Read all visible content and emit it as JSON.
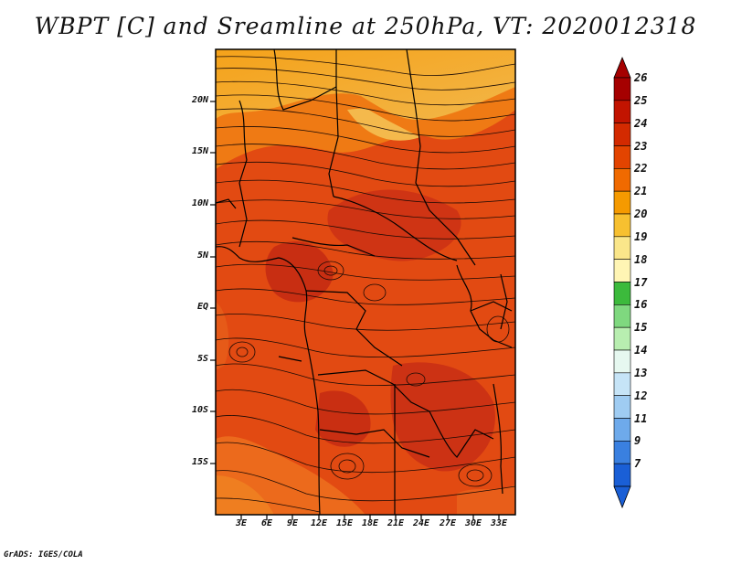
{
  "title": "WBPT [C] and Sreamline at 250hPa, VT: 2020012318",
  "credit": "GrADS: IGES/COLA",
  "map": {
    "variable": "WBPT",
    "units": "C",
    "level": "250hPa",
    "valid_time": "2020012318",
    "lat_labels": [
      "20N",
      "15N",
      "10N",
      "5N",
      "EQ",
      "5S",
      "10S",
      "15S"
    ],
    "lon_labels": [
      "3E",
      "6E",
      "9E",
      "12E",
      "15E",
      "18E",
      "21E",
      "24E",
      "27E",
      "30E",
      "33E"
    ]
  },
  "colorbar": {
    "labels": [
      "26",
      "25",
      "24",
      "23",
      "22",
      "21",
      "20",
      "19",
      "18",
      "17",
      "16",
      "15",
      "14",
      "13",
      "12",
      "11",
      "9",
      "7"
    ],
    "colors": [
      "#a50000",
      "#c21400",
      "#d32a00",
      "#e34400",
      "#f06a00",
      "#f59a00",
      "#f7c030",
      "#fae68a",
      "#fff5b4",
      "#3cba3c",
      "#7fd87f",
      "#b8eeb0",
      "#e6f8f0",
      "#c6e4f7",
      "#9fccf2",
      "#6eaaeb",
      "#3a80e0",
      "#1a5fd6"
    ]
  }
}
